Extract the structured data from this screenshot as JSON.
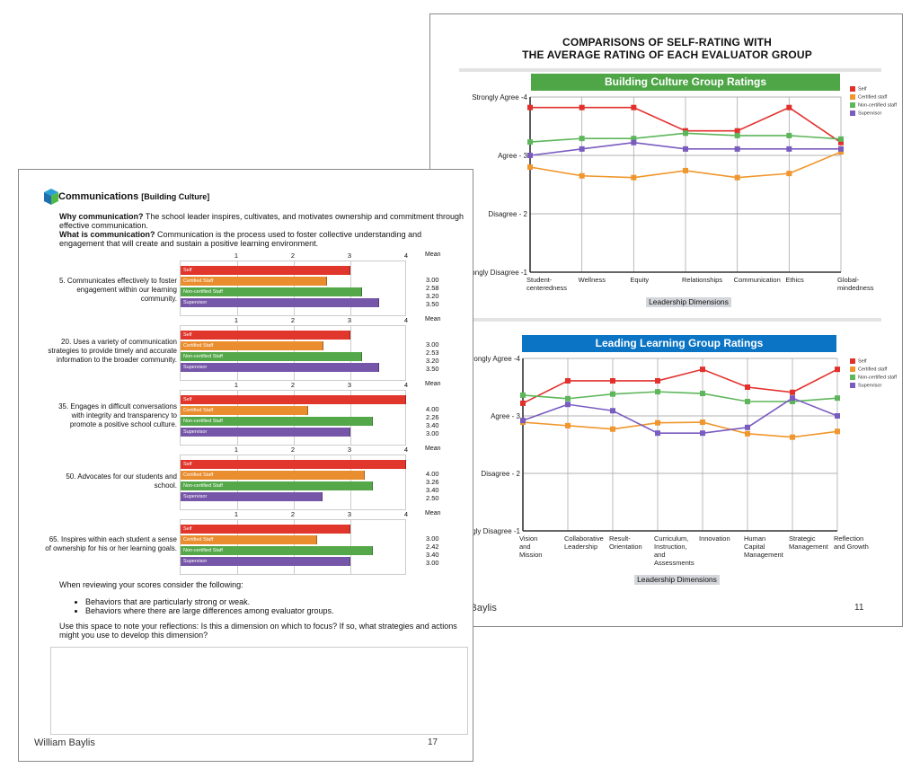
{
  "colors": {
    "self": "#e0362c",
    "certified": "#ea8d2e",
    "noncertified": "#55a84a",
    "supervisor": "#7656a8",
    "line_self": "#e2302d",
    "line_certified": "#f0962c",
    "line_noncertified": "#5db65a",
    "line_supervisor": "#7a5cc0",
    "green_banner": "#4ea647",
    "blue_banner": "#0b74c4"
  },
  "right_page": {
    "title_line1": "COMPARISONS OF SELF-RATING WITH",
    "title_line2": "THE AVERAGE RATING OF EACH EVALUATOR GROUP",
    "footer_name": "William Baylis",
    "page_number": "11"
  },
  "chart_data": [
    {
      "type": "line",
      "title": "Building Culture Group Ratings",
      "xlabel": "Leadership Dimensions",
      "ylim": [
        1,
        4
      ],
      "yticks": [
        {
          "v": 4,
          "label": "Strongly Agree -4"
        },
        {
          "v": 3,
          "label": "Agree - 3"
        },
        {
          "v": 2,
          "label": "Disagree - 2"
        },
        {
          "v": 1,
          "label": "Strongly Disagree -1"
        }
      ],
      "categories": [
        "Student-\ncenteredness",
        "Wellness",
        "Equity",
        "Relationships",
        "Communication",
        "Ethics",
        "Global-\nmindedness"
      ],
      "legend_position": "right",
      "series": [
        {
          "name": "Self",
          "key": "line_self",
          "values": [
            3.82,
            3.82,
            3.82,
            3.42,
            3.42,
            3.82,
            3.22
          ]
        },
        {
          "name": "Certified staff",
          "key": "line_certified",
          "values": [
            2.8,
            2.65,
            2.62,
            2.74,
            2.62,
            2.69,
            3.06
          ]
        },
        {
          "name": "Non-certified staff",
          "key": "line_noncertified",
          "values": [
            3.23,
            3.29,
            3.29,
            3.38,
            3.34,
            3.34,
            3.28
          ]
        },
        {
          "name": "Supervisor",
          "key": "line_supervisor",
          "values": [
            3.0,
            3.11,
            3.22,
            3.11,
            3.11,
            3.11,
            3.11
          ]
        }
      ]
    },
    {
      "type": "line",
      "title": "Leading Learning Group Ratings",
      "xlabel": "Leadership Dimensions",
      "ylim": [
        1,
        4
      ],
      "yticks": [
        {
          "v": 4,
          "label": "Strongly Agree -4"
        },
        {
          "v": 3,
          "label": "Agree - 3"
        },
        {
          "v": 2,
          "label": "Disagree - 2"
        },
        {
          "v": 1,
          "label": "Strongly Disagree -1"
        }
      ],
      "categories": [
        "Vision\nand\nMission",
        "Collaborative\nLeadership",
        "Result-\nOrientation",
        "Curriculum,\nInstruction,\nand\nAssessments",
        "Innovation",
        "Human\nCapital\nManagement",
        "Strategic\nManagement",
        "Reflection\nand Growth"
      ],
      "legend_position": "right",
      "series": [
        {
          "name": "Self",
          "key": "line_self",
          "values": [
            3.22,
            3.61,
            3.61,
            3.61,
            3.81,
            3.5,
            3.41,
            3.81
          ]
        },
        {
          "name": "Certified staff",
          "key": "line_certified",
          "values": [
            2.89,
            2.83,
            2.77,
            2.88,
            2.89,
            2.69,
            2.63,
            2.73
          ]
        },
        {
          "name": "Non-certified staff",
          "key": "line_noncertified",
          "values": [
            3.36,
            3.3,
            3.38,
            3.42,
            3.39,
            3.25,
            3.25,
            3.31
          ]
        },
        {
          "name": "Supervisor",
          "key": "line_supervisor",
          "values": [
            2.92,
            3.2,
            3.09,
            2.7,
            2.7,
            2.8,
            3.31,
            3.0
          ]
        }
      ]
    }
  ],
  "left_page": {
    "title": "Communications",
    "title_sub": "[Building Culture]",
    "why_label": "Why communication?",
    "why_text": " The school leader inspires, cultivates, and motivates ownership and commitment through effective communication.",
    "what_label": "What is communication?",
    "what_text": " Communication is the process used to foster collective understanding and engagement that will create and sustain a positive learning environment.",
    "scale_ticks": [
      "1",
      "2",
      "3",
      "4"
    ],
    "mean_label": "Mean",
    "groups": [
      {
        "name": "Self",
        "key": "self"
      },
      {
        "name": "Certified Staff",
        "key": "certified"
      },
      {
        "name": "Non-certified Staff",
        "key": "noncertified"
      },
      {
        "name": "Supervisor",
        "key": "supervisor"
      }
    ],
    "items": [
      {
        "label": "5. Communicates effectively to foster engagement within our learning community.",
        "values": [
          3.0,
          2.58,
          3.2,
          3.5
        ]
      },
      {
        "label": "20. Uses a variety of communication strategies to provide timely and accurate information to the broader community.",
        "values": [
          3.0,
          2.53,
          3.2,
          3.5
        ]
      },
      {
        "label": "35. Engages in difficult conversations with integrity and transparency to promote a positive school culture.",
        "values": [
          4.0,
          2.26,
          3.4,
          3.0
        ]
      },
      {
        "label": "50. Advocates for our students and school.",
        "values": [
          4.0,
          3.26,
          3.4,
          2.5
        ]
      },
      {
        "label": "65. Inspires within each student a sense of ownership for his or her learning goals.",
        "values": [
          3.0,
          2.42,
          3.4,
          3.0
        ]
      }
    ],
    "review_intro": "When reviewing your scores consider the following:",
    "bullets": [
      "Behaviors that are particularly strong or weak.",
      "Behaviors where there are large differences among evaluator groups."
    ],
    "reflect_prompt": "Use this space to note your reflections: Is this a dimension on which to focus? If so, what strategies and actions might you use to develop this dimension?",
    "reflection_value": "",
    "footer_name": "William Baylis",
    "page_number": "17"
  }
}
